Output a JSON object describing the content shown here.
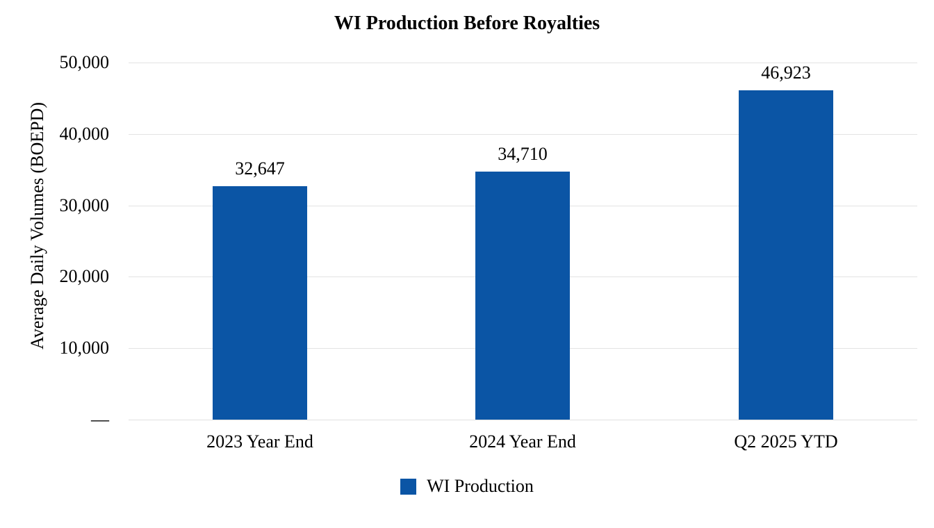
{
  "chart_data": {
    "type": "bar",
    "title": "WI Production Before Royalties",
    "categories": [
      "2023 Year End",
      "2024 Year End",
      "Q2 2025 YTD"
    ],
    "values": [
      32647,
      34710,
      46923
    ],
    "value_labels": [
      "32,647",
      "34,710",
      "46,923"
    ],
    "xlabel": "",
    "ylabel": "Average Daily Volumes (BOEPD)",
    "ylim": [
      0,
      50000
    ],
    "ytick_interval": 10000,
    "ytick_labels": [
      "50,000",
      "40,000",
      "30,000",
      "20,000",
      "10,000",
      "—"
    ],
    "grid": true,
    "legend_position": "bottom",
    "series": [
      {
        "name": "WI Production",
        "values": [
          32647,
          34710,
          46923
        ],
        "color": "#0b55a5"
      }
    ]
  },
  "legend": {
    "label": "WI Production"
  },
  "colors": {
    "bar": "#0b55a5",
    "gridline": "#e3e3e3",
    "text": "#000000",
    "background": "#ffffff"
  }
}
